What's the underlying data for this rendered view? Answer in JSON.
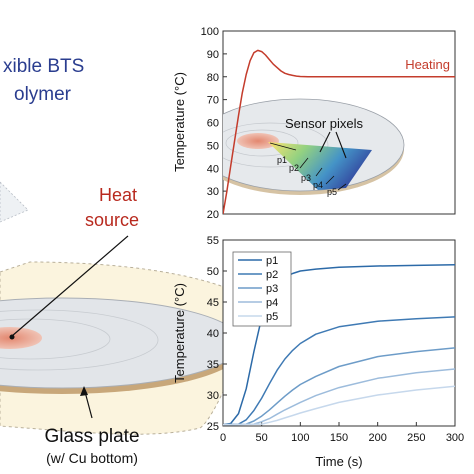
{
  "illustration": {
    "material_line1": "xible BTS",
    "material_line2": "olymer",
    "heat_source_line1": "Heat",
    "heat_source_line2": "source",
    "glass_plate": "Glass plate",
    "glass_plate_note": "(w/ Cu bottom)",
    "colors": {
      "material_text": "#2a3d8f",
      "heat_text": "#b8291e",
      "plate_rim": "#c8a77a",
      "substrate": "#fbf4de"
    }
  },
  "inset": {
    "title": "Sensor pixels",
    "pixel_labels": [
      "p1",
      "p2",
      "p3",
      "p4",
      "p5"
    ]
  },
  "chart_data": [
    {
      "type": "line",
      "xlabel": "",
      "ylabel": "Temperature (°C)",
      "xlim": [
        0,
        300
      ],
      "ylim": [
        20,
        100
      ],
      "yticks": [
        20,
        30,
        40,
        50,
        60,
        70,
        80,
        90,
        100
      ],
      "series": [
        {
          "name": "Heating",
          "color": "#c43c2c",
          "x": [
            0,
            5,
            10,
            15,
            20,
            25,
            30,
            35,
            40,
            45,
            50,
            55,
            60,
            65,
            70,
            75,
            80,
            85,
            90,
            95,
            100,
            110,
            120,
            140,
            160,
            200,
            250,
            300
          ],
          "y": [
            20,
            30,
            41,
            52,
            63,
            73,
            81,
            87,
            90.5,
            91.5,
            91,
            89.5,
            87.5,
            85.5,
            84,
            82.5,
            81.5,
            81,
            80.6,
            80.3,
            80.1,
            80,
            80,
            80,
            80,
            80,
            80,
            80
          ]
        }
      ]
    },
    {
      "type": "line",
      "xlabel": "Time (s)",
      "ylabel": "Temperature (°C)",
      "xlim": [
        0,
        300
      ],
      "ylim": [
        25,
        55
      ],
      "xticks": [
        0,
        50,
        100,
        150,
        200,
        250,
        300
      ],
      "yticks": [
        25,
        30,
        35,
        40,
        45,
        50,
        55
      ],
      "legend": "top-left",
      "series": [
        {
          "name": "p1",
          "color": "#2c6aa8",
          "x": [
            0,
            10,
            20,
            30,
            40,
            50,
            60,
            70,
            80,
            90,
            100,
            120,
            150,
            200,
            250,
            300
          ],
          "y": [
            25.2,
            25.4,
            27,
            31,
            37,
            42.5,
            46,
            48,
            49,
            49.6,
            50,
            50.3,
            50.6,
            50.8,
            50.9,
            51
          ]
        },
        {
          "name": "p2",
          "color": "#3f7ab4",
          "x": [
            0,
            20,
            30,
            40,
            50,
            60,
            70,
            80,
            90,
            100,
            120,
            150,
            200,
            250,
            300
          ],
          "y": [
            25.2,
            25.3,
            26,
            27.5,
            29.5,
            31.8,
            34,
            35.8,
            37.2,
            38.3,
            39.8,
            41,
            41.9,
            42.3,
            42.6
          ]
        },
        {
          "name": "p3",
          "color": "#6d9cc8",
          "x": [
            0,
            30,
            40,
            50,
            60,
            70,
            80,
            90,
            100,
            120,
            150,
            200,
            250,
            300
          ],
          "y": [
            25.2,
            25.3,
            25.8,
            26.6,
            27.6,
            28.7,
            29.8,
            30.8,
            31.7,
            33,
            34.6,
            36.2,
            37,
            37.6
          ]
        },
        {
          "name": "p4",
          "color": "#9dbcdc",
          "x": [
            0,
            40,
            50,
            60,
            70,
            80,
            90,
            100,
            120,
            150,
            200,
            250,
            300
          ],
          "y": [
            25.2,
            25.3,
            25.7,
            26.2,
            26.9,
            27.6,
            28.2,
            28.8,
            29.9,
            31.2,
            32.7,
            33.6,
            34.2
          ]
        },
        {
          "name": "p5",
          "color": "#c6d8ec",
          "x": [
            0,
            50,
            60,
            70,
            80,
            90,
            100,
            120,
            150,
            200,
            250,
            300
          ],
          "y": [
            25.2,
            25.3,
            25.6,
            25.9,
            26.3,
            26.7,
            27.1,
            27.8,
            28.8,
            30,
            30.8,
            31.4
          ]
        }
      ]
    }
  ]
}
